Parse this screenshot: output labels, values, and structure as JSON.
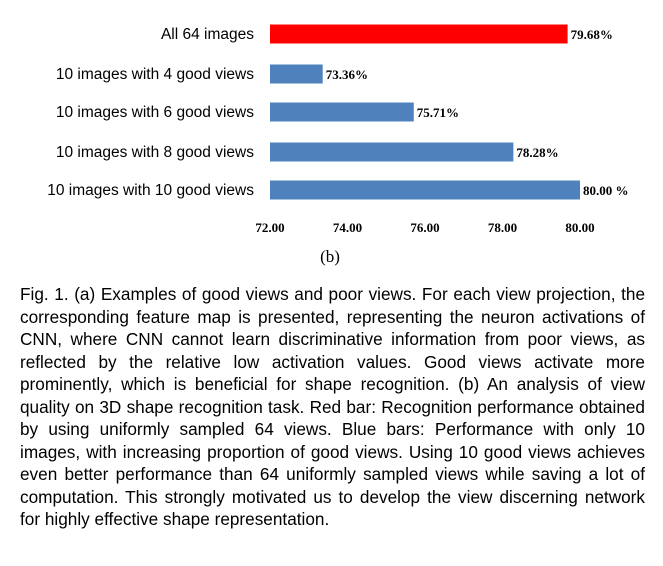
{
  "chart_data": {
    "type": "bar",
    "orientation": "horizontal",
    "categories": [
      "All 64 images",
      "10 images with 4 good views",
      "10 images with 6 good views",
      "10 images with 8 good views",
      "10 images with 10 good views"
    ],
    "values": [
      79.68,
      73.36,
      75.71,
      78.28,
      80.0
    ],
    "value_labels": [
      "79.68%",
      "73.36%",
      "75.71%",
      "78.28%",
      "80.00 %"
    ],
    "colors": [
      "#ff0000",
      "#4f81bd",
      "#4f81bd",
      "#4f81bd",
      "#4f81bd"
    ],
    "xlim": [
      72.0,
      80.0
    ],
    "xticks": [
      72.0,
      74.0,
      76.0,
      78.0,
      80.0
    ],
    "xtick_labels": [
      "72.00",
      "74.00",
      "76.00",
      "78.00",
      "80.00"
    ],
    "grid": false,
    "panel_label": "(b)"
  },
  "caption": "Fig. 1. (a) Examples of good views and poor views. For each view projection, the corresponding feature map is presented, representing the neuron activations of CNN, where CNN cannot learn discriminative information from poor views, as reflected by the relative low activation values. Good views activate more prominently, which is beneficial for shape recognition. (b) An analysis of view quality on 3D shape recognition task. Red bar: Recognition performance obtained by using uniformly sampled 64 views. Blue bars: Performance with only 10 images, with increasing proportion of good views. Using 10 good views achieves even better performance than 64 uniformly sampled views while saving a lot of computation. This strongly motivated us to develop the view discerning network for highly effective shape representation."
}
